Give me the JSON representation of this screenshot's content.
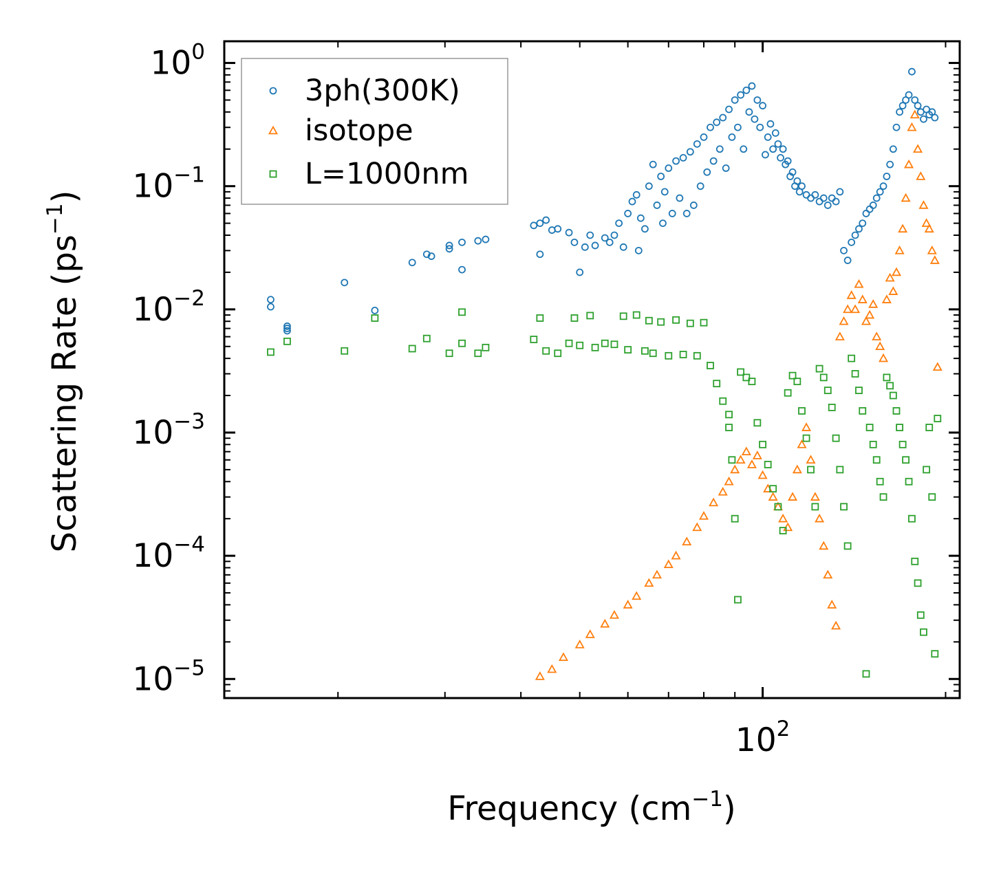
{
  "chart_data": {
    "type": "scatter",
    "xscale": "log",
    "yscale": "log",
    "xlim": [
      13,
      211
    ],
    "ylim": [
      7e-06,
      1.5
    ],
    "xlabel": "Frequency (cm",
    "xlabel_sup": "−1",
    "xlabel_end": ")",
    "ylabel": "Scattering Rate (ps",
    "ylabel_sup": "−1",
    "ylabel_end": ")",
    "x_tick_labels": [
      {
        "value": 100,
        "base": "10",
        "exp": "2"
      }
    ],
    "y_tick_labels": [
      {
        "value": 1,
        "base": "10",
        "exp": "0"
      },
      {
        "value": 0.1,
        "base": "10",
        "exp": "−1"
      },
      {
        "value": 0.01,
        "base": "10",
        "exp": "−2"
      },
      {
        "value": 0.001,
        "base": "10",
        "exp": "−3"
      },
      {
        "value": 0.0001,
        "base": "10",
        "exp": "−4"
      },
      {
        "value": 1e-05,
        "base": "10",
        "exp": "−5"
      }
    ],
    "legend_position": "upper-left",
    "series": [
      {
        "name": "3ph(300K)",
        "marker": "circle",
        "color": "#1f77b4",
        "points": [
          [
            15.5,
            0.012
          ],
          [
            15.5,
            0.0105
          ],
          [
            16.5,
            0.0073
          ],
          [
            16.5,
            0.007
          ],
          [
            16.5,
            0.0067
          ],
          [
            20.5,
            0.0165
          ],
          [
            23,
            0.0098
          ],
          [
            26.5,
            0.024
          ],
          [
            28,
            0.028
          ],
          [
            28.5,
            0.027
          ],
          [
            30.5,
            0.031
          ],
          [
            30.5,
            0.033
          ],
          [
            32,
            0.021
          ],
          [
            32,
            0.035
          ],
          [
            34,
            0.036
          ],
          [
            35,
            0.037
          ],
          [
            42,
            0.048
          ],
          [
            43,
            0.05
          ],
          [
            44,
            0.053
          ],
          [
            45,
            0.044
          ],
          [
            46,
            0.045
          ],
          [
            43,
            0.028
          ],
          [
            48,
            0.042
          ],
          [
            49,
            0.035
          ],
          [
            50,
            0.02
          ],
          [
            51,
            0.032
          ],
          [
            52,
            0.04
          ],
          [
            53,
            0.033
          ],
          [
            55,
            0.038
          ],
          [
            56,
            0.035
          ],
          [
            57,
            0.04
          ],
          [
            58,
            0.05
          ],
          [
            59,
            0.032
          ],
          [
            60,
            0.06
          ],
          [
            61,
            0.075
          ],
          [
            62,
            0.085
          ],
          [
            62.5,
            0.03
          ],
          [
            63,
            0.055
          ],
          [
            64,
            0.045
          ],
          [
            65,
            0.1
          ],
          [
            66,
            0.15
          ],
          [
            67,
            0.07
          ],
          [
            68,
            0.12
          ],
          [
            68.5,
            0.05
          ],
          [
            69,
            0.09
          ],
          [
            70,
            0.14
          ],
          [
            71,
            0.06
          ],
          [
            72,
            0.16
          ],
          [
            73,
            0.08
          ],
          [
            74,
            0.17
          ],
          [
            75,
            0.06
          ],
          [
            76,
            0.19
          ],
          [
            77,
            0.07
          ],
          [
            78,
            0.22
          ],
          [
            79,
            0.1
          ],
          [
            80,
            0.25
          ],
          [
            81,
            0.13
          ],
          [
            82,
            0.3
          ],
          [
            83,
            0.16
          ],
          [
            84,
            0.33
          ],
          [
            85,
            0.2
          ],
          [
            86,
            0.36
          ],
          [
            87,
            0.14
          ],
          [
            88,
            0.42
          ],
          [
            89,
            0.25
          ],
          [
            90,
            0.5
          ],
          [
            91,
            0.3
          ],
          [
            92,
            0.55
          ],
          [
            93,
            0.2
          ],
          [
            94,
            0.6
          ],
          [
            95,
            0.4
          ],
          [
            96,
            0.65
          ],
          [
            97,
            0.35
          ],
          [
            98,
            0.5
          ],
          [
            99,
            0.3
          ],
          [
            100,
            0.45
          ],
          [
            101,
            0.18
          ],
          [
            102,
            0.25
          ],
          [
            103,
            0.32
          ],
          [
            104,
            0.2
          ],
          [
            105,
            0.27
          ],
          [
            106,
            0.22
          ],
          [
            107,
            0.17
          ],
          [
            108,
            0.2
          ],
          [
            109,
            0.15
          ],
          [
            110,
            0.16
          ],
          [
            111,
            0.12
          ],
          [
            112,
            0.13
          ],
          [
            113,
            0.1
          ],
          [
            114,
            0.11
          ],
          [
            115,
            0.09
          ],
          [
            116,
            0.1
          ],
          [
            118,
            0.085
          ],
          [
            120,
            0.08
          ],
          [
            122,
            0.085
          ],
          [
            124,
            0.075
          ],
          [
            126,
            0.08
          ],
          [
            128,
            0.07
          ],
          [
            130,
            0.08
          ],
          [
            132,
            0.075
          ],
          [
            134,
            0.09
          ],
          [
            136,
            0.03
          ],
          [
            138,
            0.025
          ],
          [
            140,
            0.035
          ],
          [
            142,
            0.04
          ],
          [
            144,
            0.045
          ],
          [
            146,
            0.05
          ],
          [
            148,
            0.06
          ],
          [
            150,
            0.065
          ],
          [
            152,
            0.07
          ],
          [
            154,
            0.08
          ],
          [
            156,
            0.09
          ],
          [
            158,
            0.1
          ],
          [
            160,
            0.12
          ],
          [
            162,
            0.15
          ],
          [
            164,
            0.2
          ],
          [
            166,
            0.3
          ],
          [
            168,
            0.4
          ],
          [
            170,
            0.45
          ],
          [
            172,
            0.5
          ],
          [
            174,
            0.55
          ],
          [
            176,
            0.85
          ],
          [
            178,
            0.5
          ],
          [
            180,
            0.45
          ],
          [
            182,
            0.4
          ],
          [
            184,
            0.35
          ],
          [
            186,
            0.42
          ],
          [
            188,
            0.38
          ],
          [
            190,
            0.4
          ],
          [
            192,
            0.36
          ]
        ]
      },
      {
        "name": "isotope",
        "marker": "triangle",
        "color": "#ff7f0e",
        "points": [
          [
            43,
            1.05e-05
          ],
          [
            45,
            1.2e-05
          ],
          [
            47,
            1.5e-05
          ],
          [
            50,
            1.9e-05
          ],
          [
            52,
            2.3e-05
          ],
          [
            55,
            2.8e-05
          ],
          [
            57,
            3.3e-05
          ],
          [
            60,
            4e-05
          ],
          [
            62,
            4.7e-05
          ],
          [
            65,
            6e-05
          ],
          [
            67,
            7e-05
          ],
          [
            70,
            8.5e-05
          ],
          [
            72,
            0.0001
          ],
          [
            75,
            0.00013
          ],
          [
            78,
            0.00017
          ],
          [
            80,
            0.00021
          ],
          [
            83,
            0.00027
          ],
          [
            86,
            0.00033
          ],
          [
            88,
            0.0004
          ],
          [
            90,
            0.0005
          ],
          [
            92,
            0.0006
          ],
          [
            94,
            0.0007
          ],
          [
            96,
            0.00055
          ],
          [
            98,
            0.00065
          ],
          [
            100,
            0.00045
          ],
          [
            102,
            0.00035
          ],
          [
            104,
            0.0003
          ],
          [
            106,
            0.00025
          ],
          [
            108,
            0.0002
          ],
          [
            110,
            0.00017
          ],
          [
            112,
            0.0003
          ],
          [
            114,
            0.0005
          ],
          [
            116,
            0.0008
          ],
          [
            118,
            0.0011
          ],
          [
            120,
            0.0006
          ],
          [
            122,
            0.0003
          ],
          [
            124,
            0.0002
          ],
          [
            126,
            0.00012
          ],
          [
            128,
            7e-05
          ],
          [
            130,
            4e-05
          ],
          [
            132,
            2.7e-05
          ],
          [
            134,
            0.006
          ],
          [
            136,
            0.008
          ],
          [
            138,
            0.01
          ],
          [
            140,
            0.013
          ],
          [
            142,
            0.01
          ],
          [
            144,
            0.016
          ],
          [
            146,
            0.012
          ],
          [
            148,
            0.008
          ],
          [
            150,
            0.009
          ],
          [
            152,
            0.011
          ],
          [
            154,
            0.006
          ],
          [
            156,
            0.005
          ],
          [
            158,
            0.004
          ],
          [
            160,
            0.012
          ],
          [
            162,
            0.018
          ],
          [
            164,
            0.014
          ],
          [
            166,
            0.02
          ],
          [
            168,
            0.03
          ],
          [
            170,
            0.045
          ],
          [
            172,
            0.08
          ],
          [
            174,
            0.15
          ],
          [
            176,
            0.3
          ],
          [
            178,
            0.38
          ],
          [
            180,
            0.2
          ],
          [
            182,
            0.12
          ],
          [
            184,
            0.07
          ],
          [
            186,
            0.05
          ],
          [
            188,
            0.045
          ],
          [
            190,
            0.03
          ],
          [
            192,
            0.025
          ],
          [
            194,
            0.0034
          ]
        ]
      },
      {
        "name": "L=1000nm",
        "marker": "square",
        "color": "#2ca02c",
        "points": [
          [
            15.5,
            0.0045
          ],
          [
            16.5,
            0.0055
          ],
          [
            20.5,
            0.0046
          ],
          [
            23,
            0.0085
          ],
          [
            26.5,
            0.0048
          ],
          [
            28,
            0.0058
          ],
          [
            30.5,
            0.0044
          ],
          [
            32,
            0.0095
          ],
          [
            32,
            0.0053
          ],
          [
            34,
            0.0044
          ],
          [
            35,
            0.0049
          ],
          [
            42,
            0.0057
          ],
          [
            43,
            0.0085
          ],
          [
            44,
            0.0046
          ],
          [
            46,
            0.0044
          ],
          [
            48,
            0.0053
          ],
          [
            49,
            0.0085
          ],
          [
            50,
            0.0051
          ],
          [
            52,
            0.0089
          ],
          [
            53,
            0.0049
          ],
          [
            55,
            0.0053
          ],
          [
            57,
            0.0052
          ],
          [
            59,
            0.0088
          ],
          [
            60,
            0.0047
          ],
          [
            62,
            0.009
          ],
          [
            64,
            0.0046
          ],
          [
            65,
            0.0081
          ],
          [
            66,
            0.0044
          ],
          [
            68,
            0.0079
          ],
          [
            70,
            0.0042
          ],
          [
            72,
            0.0082
          ],
          [
            74,
            0.0043
          ],
          [
            76,
            0.0077
          ],
          [
            78,
            0.0042
          ],
          [
            80,
            0.0078
          ],
          [
            82,
            0.0035
          ],
          [
            84,
            0.0025
          ],
          [
            86,
            0.0018
          ],
          [
            88,
            0.0014
          ],
          [
            88,
            0.0011
          ],
          [
            89,
            0.0006
          ],
          [
            90,
            0.0002
          ],
          [
            91,
            4.4e-05
          ],
          [
            92,
            0.0031
          ],
          [
            94,
            0.0028
          ],
          [
            96,
            0.0026
          ],
          [
            98,
            0.0012
          ],
          [
            100,
            0.0008
          ],
          [
            102,
            0.00055
          ],
          [
            104,
            0.00035
          ],
          [
            106,
            0.00025
          ],
          [
            108,
            0.00016
          ],
          [
            110,
            0.0021
          ],
          [
            112,
            0.0029
          ],
          [
            114,
            0.0026
          ],
          [
            116,
            0.0015
          ],
          [
            118,
            0.0009
          ],
          [
            120,
            0.0005
          ],
          [
            122,
            0.00025
          ],
          [
            124,
            0.0033
          ],
          [
            126,
            0.0028
          ],
          [
            128,
            0.0022
          ],
          [
            130,
            0.0016
          ],
          [
            132,
            0.0009
          ],
          [
            134,
            0.0005
          ],
          [
            136,
            0.00025
          ],
          [
            138,
            0.00012
          ],
          [
            140,
            0.004
          ],
          [
            142,
            0.003
          ],
          [
            144,
            0.0022
          ],
          [
            146,
            0.0015
          ],
          [
            148,
            1.1e-05
          ],
          [
            150,
            0.0011
          ],
          [
            152,
            0.0008
          ],
          [
            154,
            0.0006
          ],
          [
            156,
            0.0004
          ],
          [
            158,
            0.0003
          ],
          [
            160,
            0.0028
          ],
          [
            162,
            0.0024
          ],
          [
            164,
            0.002
          ],
          [
            166,
            0.0015
          ],
          [
            168,
            0.0011
          ],
          [
            170,
            0.0008
          ],
          [
            172,
            0.0006
          ],
          [
            174,
            0.0004
          ],
          [
            176,
            0.0002
          ],
          [
            178,
            9e-05
          ],
          [
            180,
            6e-05
          ],
          [
            182,
            3.3e-05
          ],
          [
            184,
            2.4e-05
          ],
          [
            186,
            0.0005
          ],
          [
            188,
            0.0011
          ],
          [
            190,
            0.0003
          ],
          [
            192,
            1.6e-05
          ],
          [
            194,
            0.0013
          ]
        ]
      }
    ]
  }
}
